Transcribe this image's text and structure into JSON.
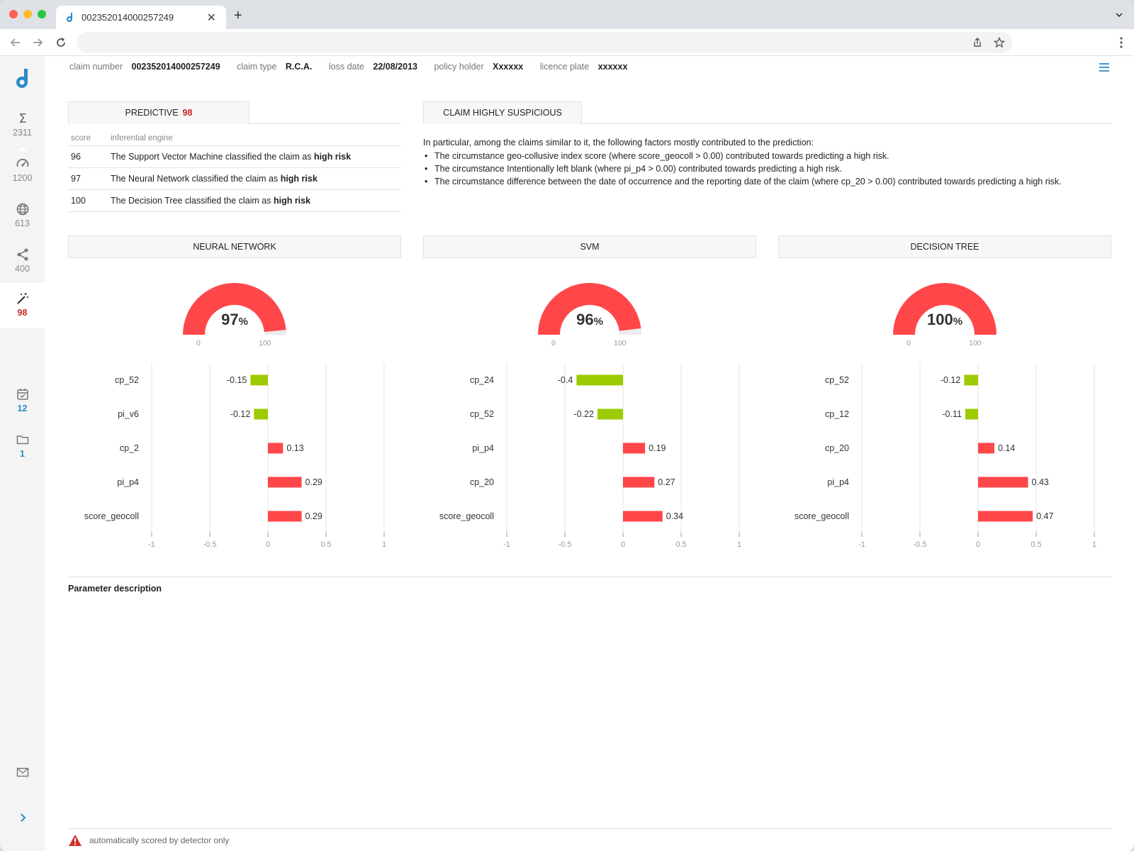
{
  "browser": {
    "tab_title": "002352014000257249",
    "new_tab": "+",
    "close": "✕"
  },
  "sidebar": {
    "items": [
      {
        "icon": "sigma-icon",
        "glyph": "Σ",
        "count": "2311"
      },
      {
        "icon": "speedometer-icon",
        "count": "1200"
      },
      {
        "icon": "globe-icon",
        "count": "613"
      },
      {
        "icon": "share-icon",
        "count": "400"
      },
      {
        "icon": "magic-wand-icon",
        "count": "98"
      },
      {
        "icon": "calendar-check-icon",
        "count": "12"
      },
      {
        "icon": "folder-icon",
        "count": "1"
      },
      {
        "icon": "mail-icon"
      },
      {
        "icon": "chevron-right-icon"
      }
    ]
  },
  "claim": {
    "number_label": "claim number",
    "number": "002352014000257249",
    "type_label": "claim type",
    "type": "R.C.A.",
    "loss_date_label": "loss date",
    "loss_date": "22/08/2013",
    "holder_label": "policy holder",
    "holder": "Xxxxxx",
    "plate_label": "licence plate",
    "plate": "xxxxxx"
  },
  "predictive": {
    "title": "PREDICTIVE",
    "score": "98",
    "col_score": "score",
    "col_engine": "inferential engine",
    "rows": [
      {
        "score": "96",
        "text": "The Support Vector Machine classified the claim as ",
        "bold": "high risk"
      },
      {
        "score": "97",
        "text": "The Neural Network classified the claim as ",
        "bold": "high risk"
      },
      {
        "score": "100",
        "text": "The Decision Tree classified the claim as ",
        "bold": "high risk"
      }
    ]
  },
  "suspicious": {
    "title": "CLAIM HIGHLY SUSPICIOUS",
    "intro": "In particular, among the claims similar to it, the following factors mostly contributed to the prediction:",
    "bullets": [
      "The circumstance geo-collusive index score (where score_geocoll > 0.00) contributed towards predicting a high risk.",
      "The circumstance Intentionally left blank (where pi_p4 > 0.00) contributed towards predicting a high risk.",
      "The circumstance difference between the date of occurrence and the reporting date of the claim (where cp_20 > 0.00) contributed towards predicting a high risk."
    ]
  },
  "models": [
    {
      "title": "NEURAL NETWORK",
      "gauge_value": "97",
      "gauge_unit": "%",
      "gauge_min": "0",
      "gauge_max": "100"
    },
    {
      "title": "SVM",
      "gauge_value": "96",
      "gauge_unit": "%",
      "gauge_min": "0",
      "gauge_max": "100"
    },
    {
      "title": "DECISION TREE",
      "gauge_value": "100",
      "gauge_unit": "%",
      "gauge_min": "0",
      "gauge_max": "100"
    }
  ],
  "chart_data": [
    {
      "type": "bar",
      "orientation": "horizontal",
      "categories": [
        "cp_52",
        "pi_v6",
        "cp_2",
        "pi_p4",
        "score_geocoll"
      ],
      "values": [
        -0.15,
        -0.12,
        0.13,
        0.29,
        0.29
      ],
      "value_labels": [
        "-0.15",
        "-0.12",
        "0.13",
        "0.29",
        "0.29"
      ],
      "xlim": [
        -1,
        1
      ],
      "xticks": [
        "-1",
        "-0.5",
        "0",
        "0.5",
        "1"
      ],
      "negative_color": "#9ccc00",
      "positive_color": "#ff474a",
      "grid": true
    },
    {
      "type": "bar",
      "orientation": "horizontal",
      "categories": [
        "cp_24",
        "cp_52",
        "pi_p4",
        "cp_20",
        "score_geocoll"
      ],
      "values": [
        -0.4,
        -0.22,
        0.19,
        0.27,
        0.34
      ],
      "value_labels": [
        "-0.4",
        "-0.22",
        "0.19",
        "0.27",
        "0.34"
      ],
      "xlim": [
        -1,
        1
      ],
      "xticks": [
        "-1",
        "-0.5",
        "0",
        "0.5",
        "1"
      ],
      "negative_color": "#9ccc00",
      "positive_color": "#ff474a",
      "grid": true
    },
    {
      "type": "bar",
      "orientation": "horizontal",
      "categories": [
        "cp_52",
        "cp_12",
        "cp_20",
        "pi_p4",
        "score_geocoll"
      ],
      "values": [
        -0.12,
        -0.11,
        0.14,
        0.43,
        0.47
      ],
      "value_labels": [
        "-0.12",
        "-0.11",
        "0.14",
        "0.43",
        "0.47"
      ],
      "xlim": [
        -1,
        1
      ],
      "xticks": [
        "-1",
        "-0.5",
        "0",
        "0.5",
        "1"
      ],
      "negative_color": "#9ccc00",
      "positive_color": "#ff474a",
      "grid": true
    }
  ],
  "gauge_color": "#ff474a",
  "param_title": "Parameter description",
  "footer_text": "automatically scored by detector only"
}
